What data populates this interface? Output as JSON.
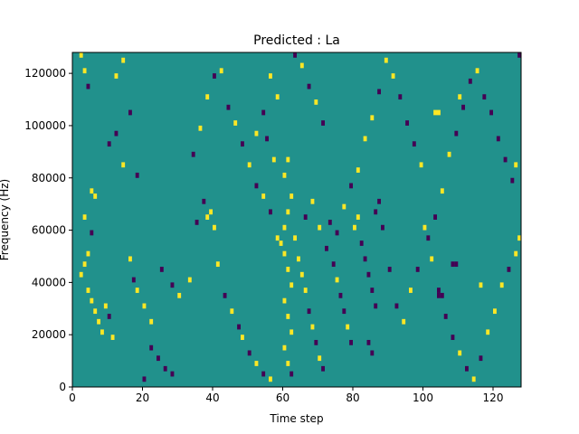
{
  "chart_data": {
    "type": "heatmap",
    "title": "Predicted : La",
    "xlabel": "Time step",
    "ylabel": "Frequency (Hz)",
    "xlim": [
      0,
      128
    ],
    "ylim": [
      0,
      128000
    ],
    "x_ticks": [
      0,
      20,
      40,
      60,
      80,
      100,
      120
    ],
    "y_ticks": [
      0,
      20000,
      40000,
      60000,
      80000,
      100000,
      120000
    ],
    "grid": false,
    "colors": {
      "background": "#21918c",
      "high": "#fde725",
      "low": "#440154"
    },
    "cells": [
      {
        "t": 2,
        "f": 126,
        "v": "high"
      },
      {
        "t": 3,
        "f": 120,
        "v": "high"
      },
      {
        "t": 4,
        "f": 114,
        "v": "low"
      },
      {
        "t": 5,
        "f": 74,
        "v": "high"
      },
      {
        "t": 6,
        "f": 72,
        "v": "high"
      },
      {
        "t": 3,
        "f": 64,
        "v": "high"
      },
      {
        "t": 5,
        "f": 58,
        "v": "low"
      },
      {
        "t": 4,
        "f": 50,
        "v": "high"
      },
      {
        "t": 3,
        "f": 46,
        "v": "high"
      },
      {
        "t": 2,
        "f": 42,
        "v": "high"
      },
      {
        "t": 4,
        "f": 36,
        "v": "high"
      },
      {
        "t": 5,
        "f": 32,
        "v": "high"
      },
      {
        "t": 6,
        "f": 28,
        "v": "high"
      },
      {
        "t": 7,
        "f": 24,
        "v": "high"
      },
      {
        "t": 8,
        "f": 20,
        "v": "high"
      },
      {
        "t": 9,
        "f": 30,
        "v": "high"
      },
      {
        "t": 10,
        "f": 26,
        "v": "low"
      },
      {
        "t": 11,
        "f": 18,
        "v": "high"
      },
      {
        "t": 10,
        "f": 92,
        "v": "low"
      },
      {
        "t": 12,
        "f": 96,
        "v": "low"
      },
      {
        "t": 12,
        "f": 118,
        "v": "high"
      },
      {
        "t": 14,
        "f": 124,
        "v": "high"
      },
      {
        "t": 16,
        "f": 104,
        "v": "low"
      },
      {
        "t": 14,
        "f": 84,
        "v": "high"
      },
      {
        "t": 18,
        "f": 80,
        "v": "low"
      },
      {
        "t": 16,
        "f": 48,
        "v": "high"
      },
      {
        "t": 17,
        "f": 40,
        "v": "low"
      },
      {
        "t": 18,
        "f": 36,
        "v": "high"
      },
      {
        "t": 20,
        "f": 30,
        "v": "high"
      },
      {
        "t": 22,
        "f": 14,
        "v": "low"
      },
      {
        "t": 24,
        "f": 10,
        "v": "low"
      },
      {
        "t": 26,
        "f": 6,
        "v": "low"
      },
      {
        "t": 28,
        "f": 4,
        "v": "low"
      },
      {
        "t": 20,
        "f": 2,
        "v": "low"
      },
      {
        "t": 22,
        "f": 24,
        "v": "high"
      },
      {
        "t": 25,
        "f": 44,
        "v": "low"
      },
      {
        "t": 28,
        "f": 38,
        "v": "low"
      },
      {
        "t": 30,
        "f": 34,
        "v": "high"
      },
      {
        "t": 33,
        "f": 40,
        "v": "high"
      },
      {
        "t": 35,
        "f": 62,
        "v": "low"
      },
      {
        "t": 37,
        "f": 70,
        "v": "low"
      },
      {
        "t": 38,
        "f": 64,
        "v": "high"
      },
      {
        "t": 39,
        "f": 66,
        "v": "high"
      },
      {
        "t": 40,
        "f": 60,
        "v": "high"
      },
      {
        "t": 41,
        "f": 46,
        "v": "high"
      },
      {
        "t": 43,
        "f": 34,
        "v": "low"
      },
      {
        "t": 45,
        "f": 28,
        "v": "high"
      },
      {
        "t": 47,
        "f": 22,
        "v": "low"
      },
      {
        "t": 48,
        "f": 18,
        "v": "high"
      },
      {
        "t": 50,
        "f": 12,
        "v": "low"
      },
      {
        "t": 52,
        "f": 8,
        "v": "high"
      },
      {
        "t": 54,
        "f": 4,
        "v": "low"
      },
      {
        "t": 56,
        "f": 2,
        "v": "high"
      },
      {
        "t": 34,
        "f": 88,
        "v": "low"
      },
      {
        "t": 36,
        "f": 98,
        "v": "high"
      },
      {
        "t": 38,
        "f": 110,
        "v": "high"
      },
      {
        "t": 40,
        "f": 118,
        "v": "low"
      },
      {
        "t": 42,
        "f": 120,
        "v": "high"
      },
      {
        "t": 44,
        "f": 106,
        "v": "low"
      },
      {
        "t": 46,
        "f": 100,
        "v": "high"
      },
      {
        "t": 48,
        "f": 92,
        "v": "low"
      },
      {
        "t": 50,
        "f": 84,
        "v": "high"
      },
      {
        "t": 52,
        "f": 76,
        "v": "low"
      },
      {
        "t": 54,
        "f": 72,
        "v": "high"
      },
      {
        "t": 56,
        "f": 66,
        "v": "low"
      },
      {
        "t": 58,
        "f": 56,
        "v": "high"
      },
      {
        "t": 60,
        "f": 50,
        "v": "high"
      },
      {
        "t": 61,
        "f": 44,
        "v": "high"
      },
      {
        "t": 62,
        "f": 38,
        "v": "high"
      },
      {
        "t": 60,
        "f": 32,
        "v": "high"
      },
      {
        "t": 61,
        "f": 26,
        "v": "high"
      },
      {
        "t": 62,
        "f": 20,
        "v": "high"
      },
      {
        "t": 60,
        "f": 14,
        "v": "high"
      },
      {
        "t": 61,
        "f": 8,
        "v": "high"
      },
      {
        "t": 62,
        "f": 4,
        "v": "low"
      },
      {
        "t": 60,
        "f": 60,
        "v": "high"
      },
      {
        "t": 61,
        "f": 66,
        "v": "high"
      },
      {
        "t": 62,
        "f": 72,
        "v": "high"
      },
      {
        "t": 60,
        "f": 80,
        "v": "high"
      },
      {
        "t": 61,
        "f": 86,
        "v": "high"
      },
      {
        "t": 59,
        "f": 54,
        "v": "high"
      },
      {
        "t": 63,
        "f": 56,
        "v": "high"
      },
      {
        "t": 64,
        "f": 48,
        "v": "high"
      },
      {
        "t": 65,
        "f": 42,
        "v": "high"
      },
      {
        "t": 66,
        "f": 36,
        "v": "high"
      },
      {
        "t": 67,
        "f": 28,
        "v": "low"
      },
      {
        "t": 68,
        "f": 22,
        "v": "high"
      },
      {
        "t": 69,
        "f": 16,
        "v": "low"
      },
      {
        "t": 70,
        "f": 10,
        "v": "high"
      },
      {
        "t": 71,
        "f": 6,
        "v": "low"
      },
      {
        "t": 66,
        "f": 64,
        "v": "low"
      },
      {
        "t": 68,
        "f": 70,
        "v": "high"
      },
      {
        "t": 70,
        "f": 60,
        "v": "high"
      },
      {
        "t": 72,
        "f": 52,
        "v": "low"
      },
      {
        "t": 74,
        "f": 46,
        "v": "low"
      },
      {
        "t": 75,
        "f": 40,
        "v": "high"
      },
      {
        "t": 76,
        "f": 34,
        "v": "low"
      },
      {
        "t": 77,
        "f": 28,
        "v": "low"
      },
      {
        "t": 78,
        "f": 22,
        "v": "high"
      },
      {
        "t": 79,
        "f": 16,
        "v": "low"
      },
      {
        "t": 80,
        "f": 60,
        "v": "high"
      },
      {
        "t": 81,
        "f": 64,
        "v": "high"
      },
      {
        "t": 82,
        "f": 54,
        "v": "low"
      },
      {
        "t": 83,
        "f": 48,
        "v": "low"
      },
      {
        "t": 84,
        "f": 42,
        "v": "low"
      },
      {
        "t": 85,
        "f": 36,
        "v": "low"
      },
      {
        "t": 86,
        "f": 30,
        "v": "low"
      },
      {
        "t": 84,
        "f": 16,
        "v": "low"
      },
      {
        "t": 85,
        "f": 12,
        "v": "low"
      },
      {
        "t": 86,
        "f": 66,
        "v": "low"
      },
      {
        "t": 87,
        "f": 70,
        "v": "low"
      },
      {
        "t": 88,
        "f": 60,
        "v": "low"
      },
      {
        "t": 90,
        "f": 44,
        "v": "low"
      },
      {
        "t": 92,
        "f": 30,
        "v": "low"
      },
      {
        "t": 94,
        "f": 24,
        "v": "high"
      },
      {
        "t": 96,
        "f": 36,
        "v": "high"
      },
      {
        "t": 98,
        "f": 44,
        "v": "low"
      },
      {
        "t": 100,
        "f": 60,
        "v": "high"
      },
      {
        "t": 102,
        "f": 48,
        "v": "high"
      },
      {
        "t": 104,
        "f": 36,
        "v": "low"
      },
      {
        "t": 106,
        "f": 26,
        "v": "low"
      },
      {
        "t": 108,
        "f": 18,
        "v": "low"
      },
      {
        "t": 110,
        "f": 12,
        "v": "high"
      },
      {
        "t": 112,
        "f": 6,
        "v": "low"
      },
      {
        "t": 114,
        "f": 2,
        "v": "high"
      },
      {
        "t": 116,
        "f": 10,
        "v": "low"
      },
      {
        "t": 118,
        "f": 20,
        "v": "high"
      },
      {
        "t": 120,
        "f": 28,
        "v": "high"
      },
      {
        "t": 122,
        "f": 38,
        "v": "high"
      },
      {
        "t": 124,
        "f": 44,
        "v": "low"
      },
      {
        "t": 126,
        "f": 50,
        "v": "high"
      },
      {
        "t": 127,
        "f": 56,
        "v": "high"
      },
      {
        "t": 125,
        "f": 78,
        "v": "low"
      },
      {
        "t": 123,
        "f": 86,
        "v": "low"
      },
      {
        "t": 121,
        "f": 94,
        "v": "low"
      },
      {
        "t": 119,
        "f": 104,
        "v": "low"
      },
      {
        "t": 117,
        "f": 110,
        "v": "low"
      },
      {
        "t": 115,
        "f": 120,
        "v": "high"
      },
      {
        "t": 113,
        "f": 116,
        "v": "low"
      },
      {
        "t": 111,
        "f": 106,
        "v": "low"
      },
      {
        "t": 109,
        "f": 96,
        "v": "low"
      },
      {
        "t": 107,
        "f": 88,
        "v": "high"
      },
      {
        "t": 105,
        "f": 74,
        "v": "high"
      },
      {
        "t": 103,
        "f": 64,
        "v": "low"
      },
      {
        "t": 101,
        "f": 56,
        "v": "low"
      },
      {
        "t": 99,
        "f": 84,
        "v": "high"
      },
      {
        "t": 97,
        "f": 92,
        "v": "low"
      },
      {
        "t": 95,
        "f": 100,
        "v": "low"
      },
      {
        "t": 93,
        "f": 110,
        "v": "low"
      },
      {
        "t": 91,
        "f": 118,
        "v": "high"
      },
      {
        "t": 89,
        "f": 124,
        "v": "high"
      },
      {
        "t": 87,
        "f": 112,
        "v": "low"
      },
      {
        "t": 85,
        "f": 102,
        "v": "high"
      },
      {
        "t": 83,
        "f": 94,
        "v": "high"
      },
      {
        "t": 81,
        "f": 82,
        "v": "high"
      },
      {
        "t": 79,
        "f": 76,
        "v": "low"
      },
      {
        "t": 77,
        "f": 68,
        "v": "high"
      },
      {
        "t": 75,
        "f": 58,
        "v": "low"
      },
      {
        "t": 73,
        "f": 62,
        "v": "low"
      },
      {
        "t": 71,
        "f": 100,
        "v": "low"
      },
      {
        "t": 69,
        "f": 108,
        "v": "high"
      },
      {
        "t": 67,
        "f": 114,
        "v": "low"
      },
      {
        "t": 65,
        "f": 122,
        "v": "high"
      },
      {
        "t": 63,
        "f": 126,
        "v": "low"
      },
      {
        "t": 58,
        "f": 110,
        "v": "high"
      },
      {
        "t": 56,
        "f": 118,
        "v": "high"
      },
      {
        "t": 54,
        "f": 104,
        "v": "low"
      },
      {
        "t": 52,
        "f": 96,
        "v": "high"
      },
      {
        "t": 57,
        "f": 86,
        "v": "high"
      },
      {
        "t": 55,
        "f": 94,
        "v": "low"
      },
      {
        "t": 103,
        "f": 104,
        "v": "high"
      },
      {
        "t": 104,
        "f": 104,
        "v": "high"
      },
      {
        "t": 108,
        "f": 46,
        "v": "low"
      },
      {
        "t": 109,
        "f": 46,
        "v": "low"
      },
      {
        "t": 104,
        "f": 34,
        "v": "low"
      },
      {
        "t": 105,
        "f": 34,
        "v": "low"
      },
      {
        "t": 116,
        "f": 38,
        "v": "high"
      },
      {
        "t": 127,
        "f": 126,
        "v": "low"
      },
      {
        "t": 126,
        "f": 84,
        "v": "high"
      },
      {
        "t": 110,
        "f": 110,
        "v": "high"
      }
    ]
  }
}
